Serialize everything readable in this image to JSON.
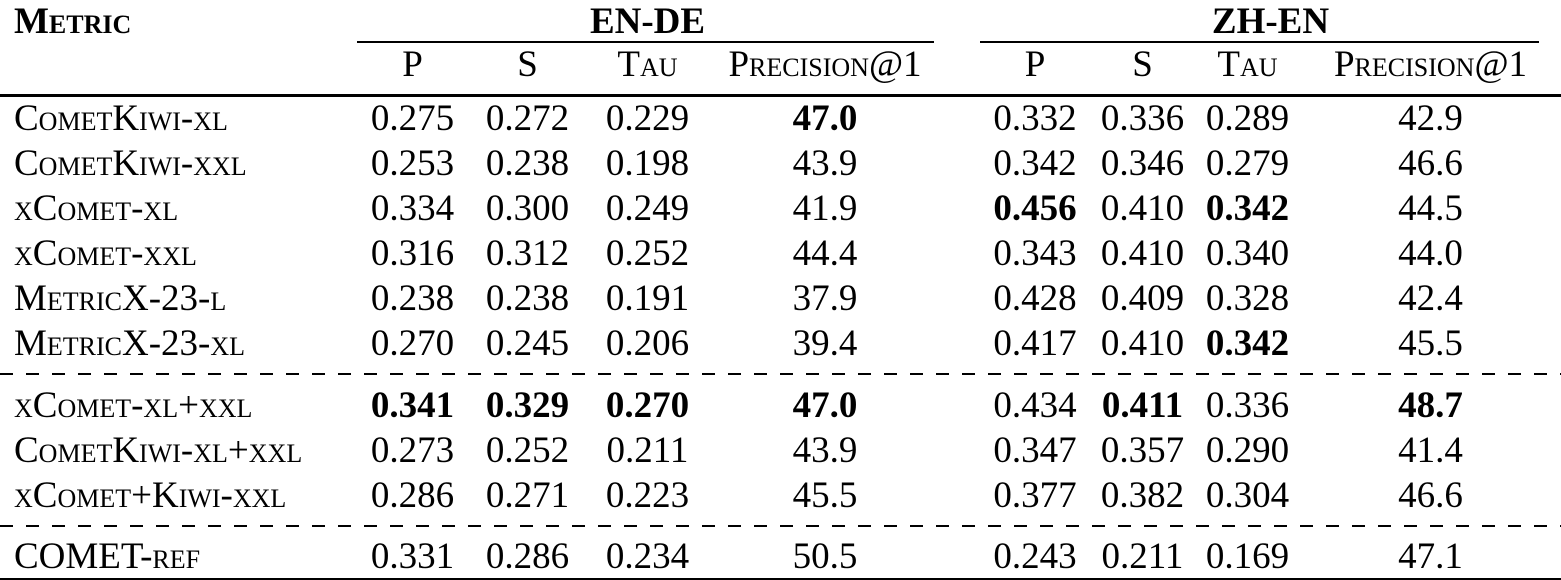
{
  "colors": {
    "text": "#000000",
    "background": "#ffffff",
    "rules": "#000000"
  },
  "table": {
    "metric_header": "Metric",
    "groups": [
      {
        "label": "EN-DE",
        "subheaders": [
          "P",
          "S",
          "Tau",
          "Precision@1"
        ]
      },
      {
        "label": "ZH-EN",
        "subheaders": [
          "P",
          "S",
          "Tau",
          "Precision@1"
        ]
      }
    ],
    "separators_after": [
      5,
      8
    ],
    "rows": [
      {
        "metric": "CometKiwi-xl",
        "values": [
          "0.275",
          "0.272",
          "0.229",
          "47.0",
          "0.332",
          "0.336",
          "0.289",
          "42.9"
        ],
        "bold": [
          false,
          false,
          false,
          true,
          false,
          false,
          false,
          false
        ]
      },
      {
        "metric": "CometKiwi-xxl",
        "values": [
          "0.253",
          "0.238",
          "0.198",
          "43.9",
          "0.342",
          "0.346",
          "0.279",
          "46.6"
        ],
        "bold": [
          false,
          false,
          false,
          false,
          false,
          false,
          false,
          false
        ]
      },
      {
        "metric": "xComet-xl",
        "values": [
          "0.334",
          "0.300",
          "0.249",
          "41.9",
          "0.456",
          "0.410",
          "0.342",
          "44.5"
        ],
        "bold": [
          false,
          false,
          false,
          false,
          true,
          false,
          true,
          false
        ]
      },
      {
        "metric": "xComet-xxl",
        "values": [
          "0.316",
          "0.312",
          "0.252",
          "44.4",
          "0.343",
          "0.410",
          "0.340",
          "44.0"
        ],
        "bold": [
          false,
          false,
          false,
          false,
          false,
          false,
          false,
          false
        ]
      },
      {
        "metric": "MetricX-23-l",
        "values": [
          "0.238",
          "0.238",
          "0.191",
          "37.9",
          "0.428",
          "0.409",
          "0.328",
          "42.4"
        ],
        "bold": [
          false,
          false,
          false,
          false,
          false,
          false,
          false,
          false
        ]
      },
      {
        "metric": "MetricX-23-xl",
        "values": [
          "0.270",
          "0.245",
          "0.206",
          "39.4",
          "0.417",
          "0.410",
          "0.342",
          "45.5"
        ],
        "bold": [
          false,
          false,
          false,
          false,
          false,
          false,
          true,
          false
        ]
      },
      {
        "metric": "xComet-xl+xxl",
        "values": [
          "0.341",
          "0.329",
          "0.270",
          "47.0",
          "0.434",
          "0.411",
          "0.336",
          "48.7"
        ],
        "bold": [
          true,
          true,
          true,
          true,
          false,
          true,
          false,
          true
        ]
      },
      {
        "metric": "CometKiwi-xl+xxl",
        "values": [
          "0.273",
          "0.252",
          "0.211",
          "43.9",
          "0.347",
          "0.357",
          "0.290",
          "41.4"
        ],
        "bold": [
          false,
          false,
          false,
          false,
          false,
          false,
          false,
          false
        ]
      },
      {
        "metric": "xComet+Kiwi-xxl",
        "values": [
          "0.286",
          "0.271",
          "0.223",
          "45.5",
          "0.377",
          "0.382",
          "0.304",
          "46.6"
        ],
        "bold": [
          false,
          false,
          false,
          false,
          false,
          false,
          false,
          false
        ]
      },
      {
        "metric": "COMET-ref",
        "values": [
          "0.331",
          "0.286",
          "0.234",
          "50.5",
          "0.243",
          "0.211",
          "0.169",
          "47.1"
        ],
        "bold": [
          false,
          false,
          false,
          false,
          false,
          false,
          false,
          false
        ]
      }
    ]
  }
}
